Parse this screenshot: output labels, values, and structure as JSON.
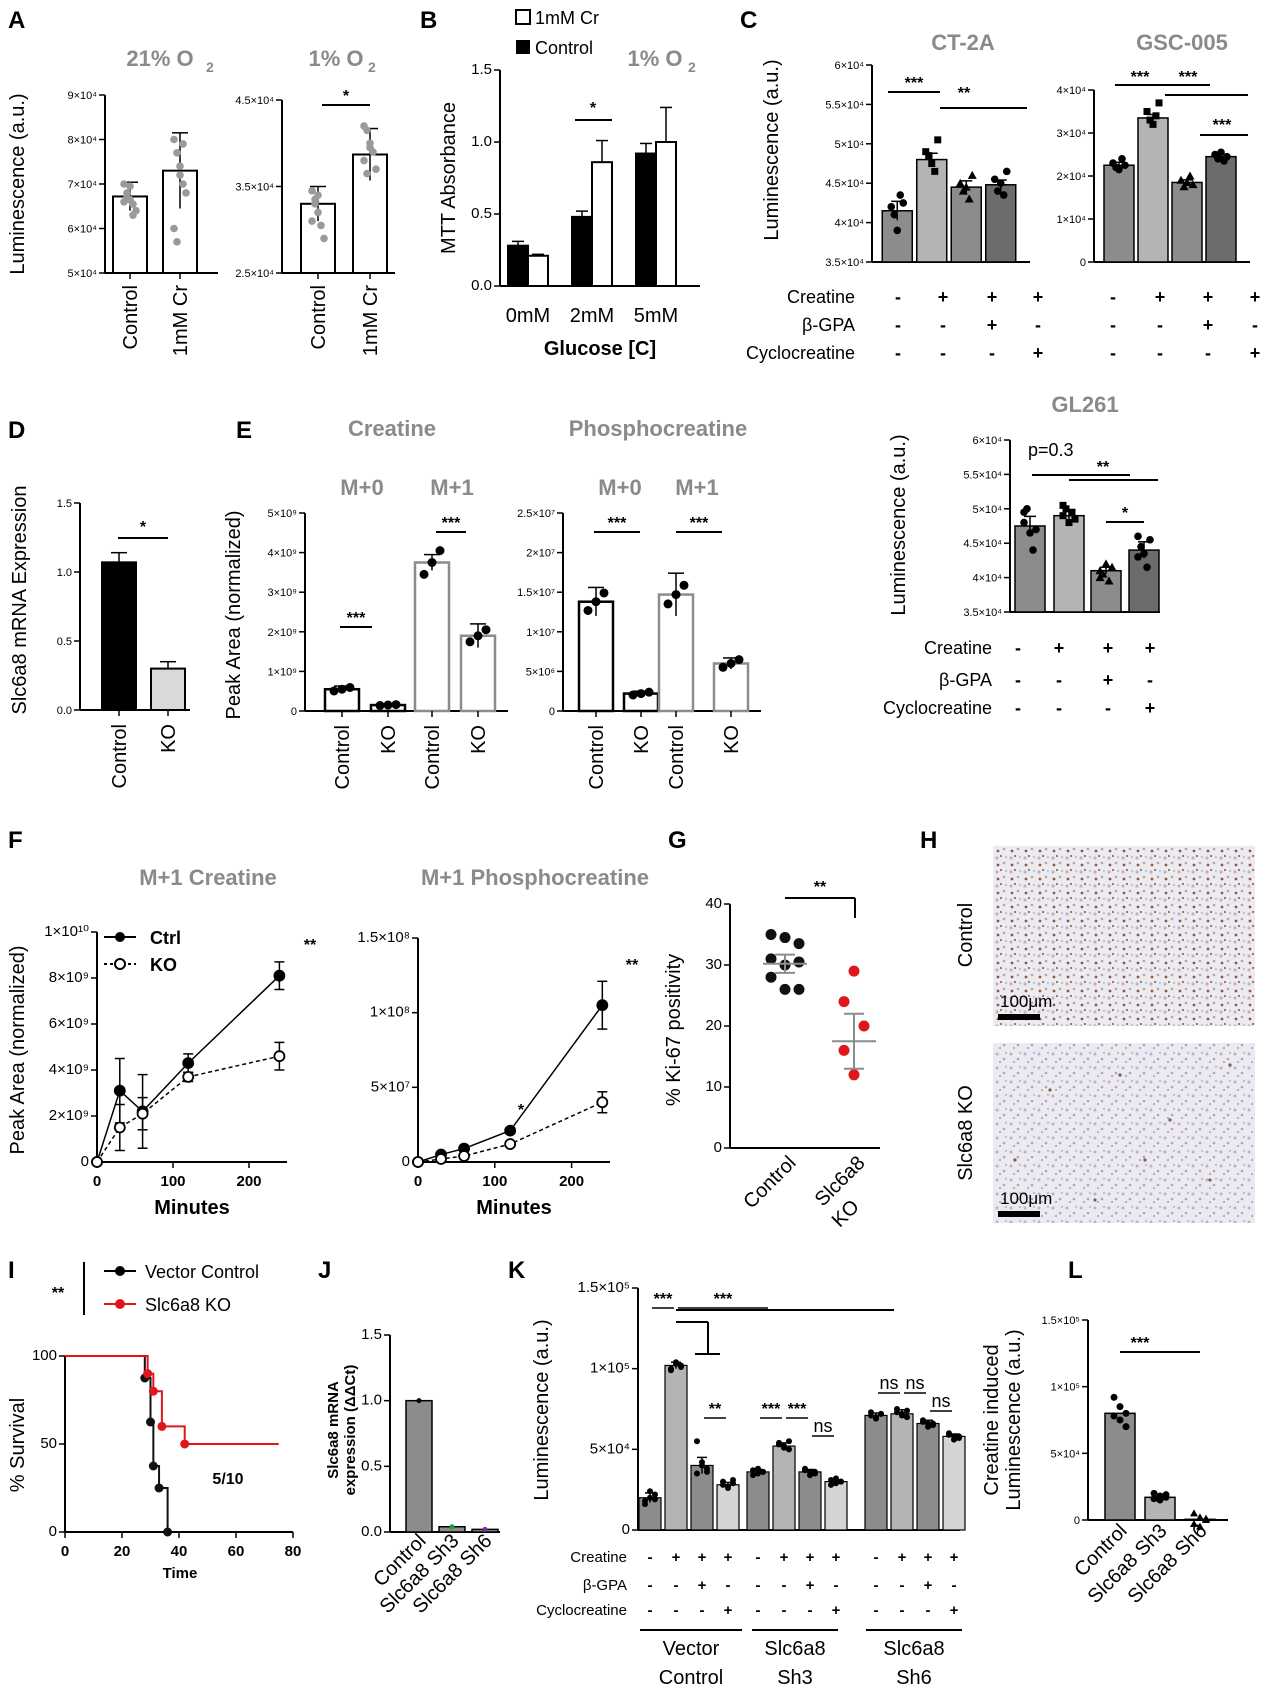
{
  "panel_letters": [
    "A",
    "B",
    "C",
    "D",
    "E",
    "F",
    "G",
    "H",
    "I",
    "J",
    "K",
    "L"
  ],
  "chart_data": [
    {
      "id": "A1",
      "type": "bar",
      "panel": "A",
      "title": "21% O2",
      "ylabel": "Luminescence (a.u.)",
      "ylim": [
        50000,
        90000
      ],
      "yticks": [
        "5×10⁴",
        "6×10⁴",
        "7×10⁴",
        "8×10⁴",
        "9×10⁴"
      ],
      "categories": [
        "Control",
        "1mM Cr"
      ],
      "values": [
        67200,
        73000
      ],
      "errors": [
        3200,
        8500
      ],
      "points": [
        [
          66000,
          68000,
          69500,
          65500,
          64000,
          70000,
          67000,
          66500,
          63000
        ],
        [
          80000,
          77000,
          74000,
          70000,
          68000,
          60000,
          57000,
          72000,
          79000
        ]
      ]
    },
    {
      "id": "A2",
      "type": "bar",
      "panel": "A",
      "title": "1% O2",
      "ylim": [
        25000,
        45000
      ],
      "yticks": [
        "2.5×10⁴",
        "3.5×10⁴",
        "4.5×10⁴"
      ],
      "categories": [
        "Control",
        "1mM Cr"
      ],
      "values": [
        33000,
        38700
      ],
      "errors": [
        2000,
        3000
      ],
      "points": [
        [
          34500,
          33500,
          32000,
          30500,
          29000,
          31000,
          33000,
          34000
        ],
        [
          42000,
          41500,
          40000,
          39000,
          37000,
          38000,
          36500,
          39500
        ]
      ],
      "sig": "*"
    },
    {
      "id": "B",
      "type": "bar",
      "panel": "B",
      "title": "1% O2",
      "ylabel": "MTT Absorbance",
      "xlabel": "Glucose [C]",
      "ylim": [
        0,
        1.5
      ],
      "yticks": [
        "0.0",
        "0.5",
        "1.0",
        "1.5"
      ],
      "categories": [
        "0mM",
        "2mM",
        "5mM"
      ],
      "series": [
        {
          "name": "Control",
          "values": [
            0.28,
            0.48,
            0.92
          ],
          "errors": [
            0.03,
            0.04,
            0.07
          ]
        },
        {
          "name": "1mM Cr",
          "values": [
            0.21,
            0.86,
            1.0
          ],
          "errors": [
            0.01,
            0.15,
            0.24
          ]
        }
      ],
      "sig": "*"
    },
    {
      "id": "C1",
      "type": "bar",
      "panel": "C",
      "title": "CT-2A",
      "ylabel": "Luminescence (a.u.)",
      "ylim": [
        35000,
        60000
      ],
      "yticks": [
        "3.5×10⁴",
        "4×10⁴",
        "4.5×10⁴",
        "5×10⁴",
        "5.5×10⁴",
        "6×10⁴"
      ],
      "values": [
        41500,
        48000,
        44500,
        44800
      ],
      "errors": [
        1200,
        800,
        800,
        600
      ],
      "points": [
        [
          42000,
          41000,
          39000,
          43500,
          42500
        ],
        [
          49000,
          48500,
          47500,
          46500,
          50500
        ],
        [
          45000,
          44000,
          44500,
          43000,
          46000
        ],
        [
          45500,
          44000,
          45000,
          43500,
          46500
        ]
      ],
      "sig": [
        "***",
        "**"
      ]
    },
    {
      "id": "C2",
      "type": "bar",
      "panel": "C",
      "title": "GSC-005",
      "ylim": [
        0,
        40000
      ],
      "yticks": [
        "0",
        "1×10⁴",
        "2×10⁴",
        "3×10⁴",
        "4×10⁴"
      ],
      "values": [
        22500,
        33500,
        18500,
        24500
      ],
      "errors": [
        700,
        800,
        600,
        500
      ],
      "points": [
        [
          23000,
          22000,
          21500,
          24000,
          22500
        ],
        [
          35000,
          33000,
          32000,
          34000,
          37000
        ],
        [
          19000,
          17500,
          18500,
          20000,
          18000
        ],
        [
          25000,
          24000,
          25500,
          23500,
          24500
        ]
      ],
      "sig": [
        "***",
        "***",
        "***"
      ]
    },
    {
      "id": "C3",
      "type": "bar",
      "panel": "C",
      "title": "GL261",
      "ylabel": "Luminescence (a.u.)",
      "ylim": [
        35000,
        60000
      ],
      "yticks": [
        "3.5×10⁴",
        "4×10⁴",
        "4.5×10⁴",
        "5×10⁴",
        "5.5×10⁴",
        "6×10⁴"
      ],
      "values": [
        47500,
        49000,
        41000,
        44000
      ],
      "errors": [
        1400,
        600,
        500,
        1200
      ],
      "points": [
        [
          48000,
          50000,
          46500,
          44000,
          47000,
          49500
        ],
        [
          49000,
          50000,
          48000,
          49500,
          48500,
          50500
        ],
        [
          41000,
          40500,
          42000,
          39500,
          41500,
          40000
        ],
        [
          46000,
          44500,
          43500,
          41500,
          45500,
          43000
        ]
      ],
      "sig": [
        "p=0.3",
        "**",
        "*"
      ]
    },
    {
      "id": "D",
      "type": "bar",
      "panel": "D",
      "ylabel": "Slc6a8 mRNA Expression",
      "ylim": [
        0,
        1.5
      ],
      "yticks": [
        "0.0",
        "0.5",
        "1.0",
        "1.5"
      ],
      "categories": [
        "Control",
        "KO"
      ],
      "values": [
        1.07,
        0.3
      ],
      "errors": [
        0.07,
        0.05
      ],
      "sig": "*"
    },
    {
      "id": "E1",
      "type": "bar",
      "panel": "E",
      "title": "Creatine",
      "ylabel": "Peak Area (normalized)",
      "ylim": [
        0,
        5000000000
      ],
      "yticks": [
        "0",
        "1×10⁹",
        "2×10⁹",
        "3×10⁹",
        "4×10⁹",
        "5×10⁹"
      ],
      "groups": [
        "M+0",
        "M+1"
      ],
      "categories": [
        "Control",
        "KO",
        "Control",
        "KO"
      ],
      "values": [
        550000000,
        150000000,
        3750000000,
        1900000000
      ],
      "errors": [
        80000000,
        30000000,
        200000000,
        300000000
      ],
      "sig": [
        "***",
        "***"
      ]
    },
    {
      "id": "E2",
      "type": "bar",
      "panel": "E",
      "title": "Phosphocreatine",
      "ylim": [
        0,
        25000000
      ],
      "yticks": [
        "0",
        "5×10⁶",
        "1×10⁷",
        "1.5×10⁷",
        "2×10⁷",
        "2.5×10⁷"
      ],
      "groups": [
        "M+0",
        "M+1"
      ],
      "categories": [
        "Control",
        "KO",
        "Control",
        "KO"
      ],
      "values": [
        13800000,
        2200000,
        14700000,
        6000000
      ],
      "errors": [
        1800000,
        300000,
        2700000,
        700000
      ],
      "sig": [
        "***",
        "***"
      ]
    },
    {
      "id": "F1",
      "type": "line",
      "panel": "F",
      "title": "M+1 Creatine",
      "ylabel": "Peak Area (normalized)",
      "xlabel": "Minutes",
      "ylim": [
        0,
        10000000000
      ],
      "xlim": [
        0,
        250
      ],
      "yticks": [
        "0",
        "2×10⁹",
        "4×10⁹",
        "6×10⁹",
        "8×10⁹",
        "1×10¹⁰"
      ],
      "xticks": [
        "0",
        "100",
        "200"
      ],
      "x": [
        0,
        30,
        60,
        120,
        240
      ],
      "series": [
        {
          "name": "Ctrl",
          "values": [
            0,
            3100000000,
            2200000000,
            4300000000,
            8100000000
          ],
          "errors": [
            0,
            1400000000,
            1600000000,
            400000000,
            600000000
          ]
        },
        {
          "name": "KO",
          "values": [
            0,
            1500000000,
            2100000000,
            3700000000,
            4600000000
          ],
          "errors": [
            0,
            1000000000,
            700000000,
            200000000,
            600000000
          ]
        }
      ],
      "sig": "**"
    },
    {
      "id": "F2",
      "type": "line",
      "panel": "F",
      "title": "M+1 Phosphocreatine",
      "xlabel": "Minutes",
      "ylim": [
        0,
        150000000
      ],
      "xlim": [
        0,
        250
      ],
      "yticks": [
        "0",
        "5×10⁷",
        "1×10⁸",
        "1.5×10⁸"
      ],
      "xticks": [
        "0",
        "100",
        "200"
      ],
      "x": [
        0,
        30,
        60,
        120,
        240
      ],
      "series": [
        {
          "name": "Ctrl",
          "values": [
            0,
            5000000,
            9000000,
            21000000,
            105000000
          ],
          "errors": [
            0,
            1000000,
            1500000,
            2000000,
            16000000
          ]
        },
        {
          "name": "KO",
          "values": [
            0,
            2000000,
            4000000,
            12000000,
            40000000
          ],
          "errors": [
            0,
            800000,
            1000000,
            1500000,
            7000000
          ]
        }
      ],
      "sig": [
        "*",
        "**"
      ]
    },
    {
      "id": "G",
      "type": "scatter",
      "panel": "G",
      "ylabel": "% Ki-67 positivity",
      "ylim": [
        0,
        40
      ],
      "yticks": [
        "0",
        "10",
        "20",
        "30",
        "40"
      ],
      "categories": [
        "Control",
        "Slc6a8 KO"
      ],
      "means": [
        30.2,
        17.5
      ],
      "sems": [
        1.5,
        4.5
      ],
      "points": [
        [
          35,
          34.5,
          33.5,
          31,
          30.5,
          30,
          28,
          26,
          26
        ],
        [
          29,
          24,
          20,
          16,
          12
        ]
      ],
      "colors": [
        "#111111",
        "#e0161b"
      ],
      "sig": "**"
    },
    {
      "id": "I",
      "type": "line",
      "panel": "I",
      "ylabel": "% Survival",
      "xlabel": "Time",
      "ylim": [
        0,
        100
      ],
      "xlim": [
        0,
        80
      ],
      "yticks": [
        "0",
        "50",
        "100"
      ],
      "xticks": [
        "0",
        "20",
        "40",
        "60",
        "80"
      ],
      "series": [
        {
          "name": "Vector Control",
          "color": "#111111",
          "x": [
            0,
            28,
            30,
            31,
            33,
            36,
            36
          ],
          "values": [
            100,
            87.5,
            62.5,
            37.5,
            25,
            0,
            0
          ]
        },
        {
          "name": "Slc6a8 KO",
          "color": "#e0161b",
          "x": [
            0,
            29,
            31,
            34,
            42,
            75
          ],
          "values": [
            100,
            90,
            80,
            60,
            50,
            50
          ]
        }
      ],
      "annotation": "5/10",
      "sig": "**"
    },
    {
      "id": "J",
      "type": "bar",
      "panel": "J",
      "ylabel": "Slc6a8 mRNA expression (ΔΔCt)",
      "ylim": [
        0,
        1.5
      ],
      "yticks": [
        "0.0",
        "0.5",
        "1.0",
        "1.5"
      ],
      "categories": [
        "Control",
        "Slc6a8 Sh3",
        "Slc6a8 Sh6"
      ],
      "values": [
        1.0,
        0.04,
        0.02
      ],
      "point_colors": [
        "#000000",
        "#1a9b3c",
        "#7a2ea8"
      ]
    },
    {
      "id": "K",
      "type": "bar",
      "panel": "K",
      "ylabel": "Luminescence (a.u.)",
      "ylim": [
        0,
        150000
      ],
      "yticks": [
        "0",
        "5×10⁴",
        "1×10⁵",
        "1.5×10⁵"
      ],
      "groups": [
        "Vector Control",
        "Slc6a8 Sh3",
        "Slc6a8 Sh6"
      ],
      "values": [
        20000,
        102000,
        40000,
        28000,
        36000,
        52000,
        36000,
        30000,
        71000,
        72000,
        66000,
        58000
      ],
      "errors": [
        3000,
        2000,
        5000,
        1500,
        1500,
        2000,
        1500,
        1000,
        1500,
        2500,
        2000,
        1500
      ],
      "points": [
        [
          18000,
          20000,
          22000,
          16000,
          24000,
          19000
        ],
        [
          100000,
          104000,
          101000,
          99000,
          103000,
          102000
        ],
        [
          55000,
          42000,
          38000,
          35000,
          40000,
          36000
        ],
        [
          30000,
          27000,
          29000,
          28000,
          26000,
          31000
        ],
        [
          37000,
          35000,
          36000,
          34000,
          38000,
          36000
        ],
        [
          54000,
          52000,
          50000,
          53000,
          51000,
          55000
        ],
        [
          38000,
          36000,
          35000,
          37000,
          34000,
          36000
        ],
        [
          31000,
          29000,
          30000,
          28000,
          32000,
          30000
        ],
        [
          73000,
          70000,
          72000,
          71000,
          69000,
          72000
        ],
        [
          75000,
          72000,
          70000,
          73000,
          71000,
          74000
        ],
        [
          68000,
          66000,
          65000,
          67000,
          64000,
          66000
        ],
        [
          60000,
          58000,
          57000,
          59000,
          56000,
          58000
        ]
      ],
      "sig": [
        "***",
        "***",
        "**",
        "***",
        "***",
        "ns",
        "ns",
        "ns",
        "ns"
      ]
    },
    {
      "id": "L",
      "type": "bar",
      "panel": "L",
      "ylabel": "Creatine induced Luminescence (a.u.)",
      "ylim": [
        0,
        150000
      ],
      "yticks": [
        "0",
        "5×10⁴",
        "1×10⁵",
        "1.5×10⁵"
      ],
      "categories": [
        "Control",
        "Slc6a8 Sh3",
        "Slc6a8 Sh6"
      ],
      "values": [
        80000,
        17000,
        500
      ],
      "points": [
        [
          92000,
          85000,
          80000,
          78000,
          75000,
          70000
        ],
        [
          20000,
          18000,
          17000,
          16000,
          15000,
          19000
        ],
        [
          5000,
          2000,
          0,
          -3000,
          -5000,
          1000
        ]
      ],
      "sig": "***"
    }
  ],
  "condition_rows": {
    "labels": [
      "Creatine",
      "β-GPA",
      "Cyclocreatine"
    ],
    "values": [
      [
        "-",
        "+",
        "+",
        "+"
      ],
      [
        "-",
        "-",
        "+",
        "-"
      ],
      [
        "-",
        "-",
        "-",
        "+"
      ]
    ]
  },
  "legends": {
    "B": [
      "1mM Cr",
      "Control"
    ],
    "F": [
      "Ctrl",
      "KO"
    ],
    "I": [
      "Vector Control",
      "Slc6a8 KO"
    ]
  },
  "images": {
    "H_top_label": "Control",
    "H_bottom_label": "Slc6a8 KO",
    "scale_bar": "100μm"
  },
  "colors": {
    "grey_light": "#b4b4b4",
    "grey_mid": "#8c8c8c",
    "grey_dark": "#6c6c6c",
    "red": "#e0161b",
    "black": "#000000"
  }
}
